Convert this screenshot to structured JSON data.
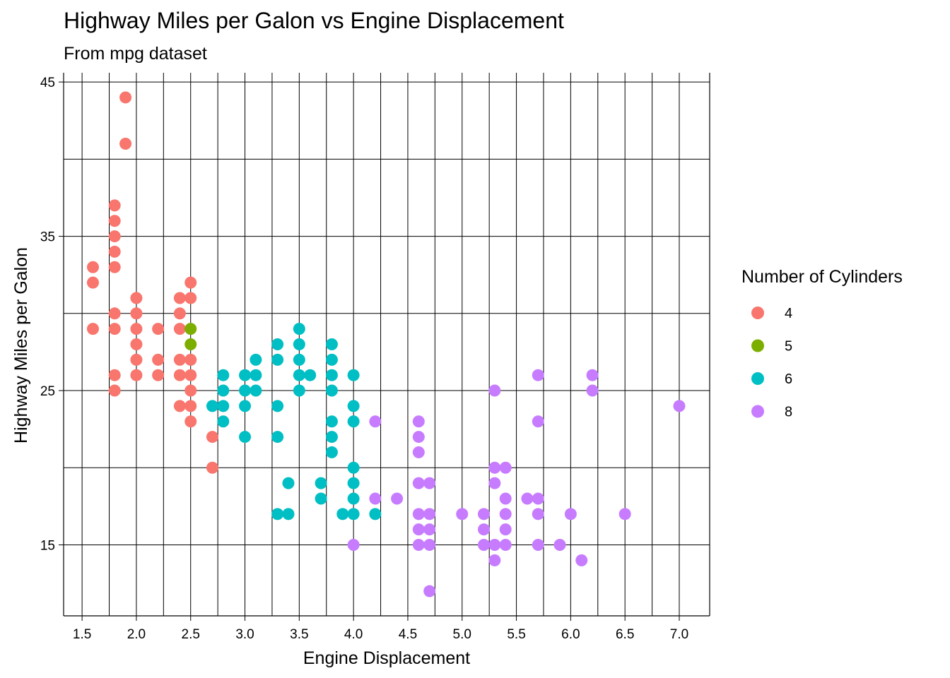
{
  "chart_data": {
    "type": "scatter",
    "title": "Highway Miles per Galon vs Engine Displacement",
    "subtitle": "From mpg dataset",
    "xlabel": "Engine Displacement",
    "ylabel": "Highway Miles per Galon",
    "xlim": [
      1.33,
      7.28
    ],
    "ylim": [
      10.4,
      45.6
    ],
    "x_major_ticks": [
      1.5,
      2.0,
      2.5,
      3.0,
      3.5,
      4.0,
      4.5,
      5.0,
      5.5,
      6.0,
      6.5,
      7.0
    ],
    "x_tick_labels": [
      "1.5",
      "2.0",
      "2.5",
      "3.0",
      "3.5",
      "4.0",
      "4.5",
      "5.0",
      "5.5",
      "6.0",
      "6.5",
      "7.0"
    ],
    "x_grid": [
      1.5,
      1.75,
      2.0,
      2.25,
      2.5,
      2.75,
      3.0,
      3.25,
      3.5,
      3.75,
      4.0,
      4.25,
      4.5,
      4.75,
      5.0,
      5.25,
      5.5,
      5.75,
      6.0,
      6.25,
      6.5,
      6.75,
      7.0
    ],
    "y_major_ticks": [
      15,
      25,
      35,
      45
    ],
    "y_tick_labels": [
      "15",
      "25",
      "35",
      "45"
    ],
    "y_grid": [
      15,
      20,
      25,
      30,
      35,
      40,
      45
    ],
    "grid": true,
    "legend": {
      "title": "Number of Cylinders",
      "placement": "right",
      "entries": [
        {
          "label": "4",
          "color": "#F8766D"
        },
        {
          "label": "5",
          "color": "#7CAE00"
        },
        {
          "label": "6",
          "color": "#00BFC4"
        },
        {
          "label": "8",
          "color": "#C77CFF"
        }
      ]
    },
    "series": [
      {
        "name": "4",
        "color": "#F8766D",
        "points": [
          [
            1.9,
            44
          ],
          [
            1.9,
            41
          ],
          [
            1.8,
            37
          ],
          [
            1.8,
            36
          ],
          [
            1.8,
            35
          ],
          [
            1.8,
            34
          ],
          [
            1.8,
            33
          ],
          [
            1.8,
            30
          ],
          [
            1.8,
            29
          ],
          [
            1.8,
            26
          ],
          [
            1.8,
            25
          ],
          [
            1.6,
            33
          ],
          [
            1.6,
            32
          ],
          [
            1.6,
            29
          ],
          [
            2.0,
            31
          ],
          [
            2.0,
            30
          ],
          [
            2.0,
            29
          ],
          [
            2.0,
            28
          ],
          [
            2.0,
            27
          ],
          [
            2.0,
            26
          ],
          [
            2.2,
            29
          ],
          [
            2.2,
            27
          ],
          [
            2.2,
            26
          ],
          [
            2.4,
            31
          ],
          [
            2.4,
            30
          ],
          [
            2.4,
            29
          ],
          [
            2.4,
            27
          ],
          [
            2.4,
            26
          ],
          [
            2.4,
            24
          ],
          [
            2.5,
            32
          ],
          [
            2.5,
            31
          ],
          [
            2.5,
            27
          ],
          [
            2.5,
            26
          ],
          [
            2.5,
            25
          ],
          [
            2.5,
            24
          ],
          [
            2.5,
            23
          ],
          [
            2.7,
            22
          ],
          [
            2.7,
            20
          ]
        ]
      },
      {
        "name": "5",
        "color": "#7CAE00",
        "points": [
          [
            2.5,
            29
          ],
          [
            2.5,
            28
          ]
        ]
      },
      {
        "name": "6",
        "color": "#00BFC4",
        "points": [
          [
            2.7,
            24
          ],
          [
            2.8,
            26
          ],
          [
            2.8,
            25
          ],
          [
            2.8,
            24
          ],
          [
            2.8,
            23
          ],
          [
            3.0,
            26
          ],
          [
            3.0,
            25
          ],
          [
            3.0,
            24
          ],
          [
            3.0,
            22
          ],
          [
            3.1,
            27
          ],
          [
            3.1,
            26
          ],
          [
            3.1,
            25
          ],
          [
            3.3,
            28
          ],
          [
            3.3,
            27
          ],
          [
            3.3,
            24
          ],
          [
            3.3,
            22
          ],
          [
            3.3,
            17
          ],
          [
            3.4,
            19
          ],
          [
            3.4,
            17
          ],
          [
            3.5,
            29
          ],
          [
            3.5,
            28
          ],
          [
            3.5,
            27
          ],
          [
            3.5,
            26
          ],
          [
            3.5,
            25
          ],
          [
            3.6,
            26
          ],
          [
            3.7,
            19
          ],
          [
            3.7,
            18
          ],
          [
            3.8,
            28
          ],
          [
            3.8,
            27
          ],
          [
            3.8,
            26
          ],
          [
            3.8,
            25
          ],
          [
            3.8,
            23
          ],
          [
            3.8,
            22
          ],
          [
            3.8,
            21
          ],
          [
            3.9,
            17
          ],
          [
            4.0,
            26
          ],
          [
            4.0,
            24
          ],
          [
            4.0,
            23
          ],
          [
            4.0,
            20
          ],
          [
            4.0,
            19
          ],
          [
            4.0,
            18
          ],
          [
            4.0,
            17
          ],
          [
            4.2,
            17
          ]
        ]
      },
      {
        "name": "8",
        "color": "#C77CFF",
        "points": [
          [
            4.0,
            15
          ],
          [
            4.2,
            23
          ],
          [
            4.2,
            18
          ],
          [
            4.4,
            18
          ],
          [
            4.6,
            23
          ],
          [
            4.6,
            22
          ],
          [
            4.6,
            21
          ],
          [
            4.6,
            19
          ],
          [
            4.6,
            17
          ],
          [
            4.6,
            16
          ],
          [
            4.6,
            15
          ],
          [
            4.7,
            19
          ],
          [
            4.7,
            17
          ],
          [
            4.7,
            16
          ],
          [
            4.7,
            15
          ],
          [
            4.7,
            12
          ],
          [
            5.0,
            17
          ],
          [
            5.2,
            17
          ],
          [
            5.2,
            16
          ],
          [
            5.2,
            15
          ],
          [
            5.3,
            25
          ],
          [
            5.3,
            20
          ],
          [
            5.3,
            19
          ],
          [
            5.3,
            15
          ],
          [
            5.3,
            14
          ],
          [
            5.4,
            20
          ],
          [
            5.4,
            18
          ],
          [
            5.4,
            17
          ],
          [
            5.4,
            16
          ],
          [
            5.4,
            15
          ],
          [
            5.6,
            18
          ],
          [
            5.7,
            26
          ],
          [
            5.7,
            23
          ],
          [
            5.7,
            18
          ],
          [
            5.7,
            17
          ],
          [
            5.7,
            15
          ],
          [
            5.9,
            15
          ],
          [
            6.0,
            17
          ],
          [
            6.1,
            14
          ],
          [
            6.2,
            26
          ],
          [
            6.2,
            25
          ],
          [
            6.5,
            17
          ],
          [
            7.0,
            24
          ]
        ]
      }
    ]
  }
}
